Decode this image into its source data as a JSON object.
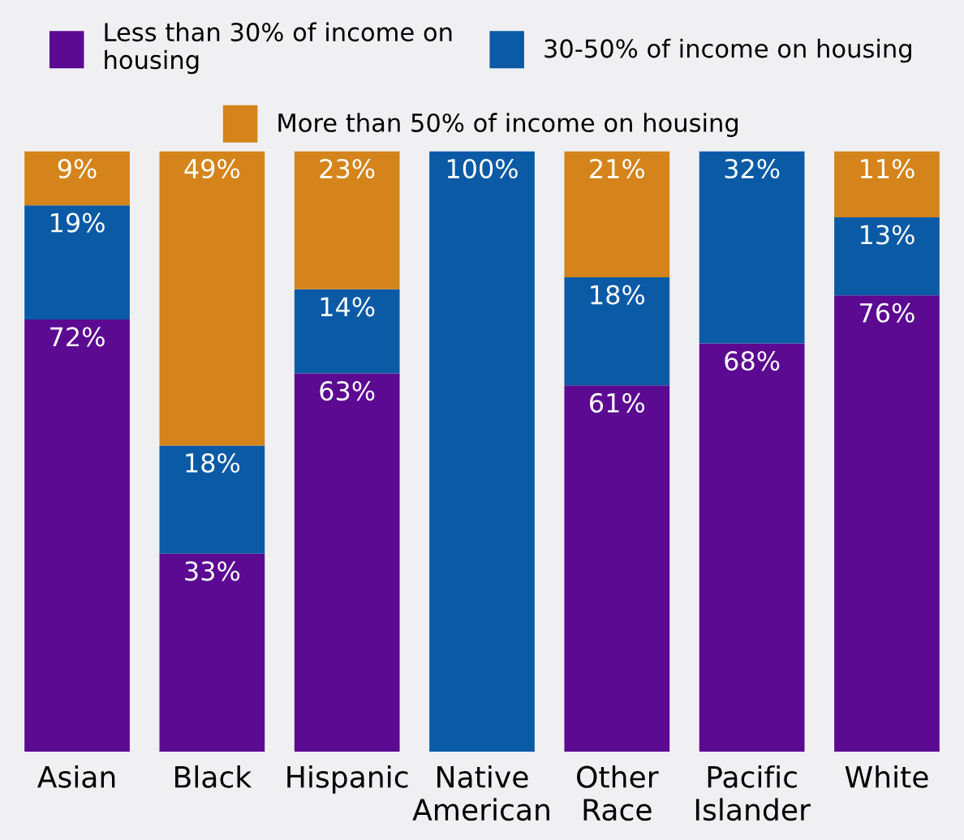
{
  "chart_data": {
    "type": "bar",
    "stacked": true,
    "categories": [
      "Asian",
      "Black",
      "Hispanic",
      "Native American",
      "Other Race",
      "Pacific Islander",
      "White"
    ],
    "series": [
      {
        "name": "Less than 30% of income on housing",
        "color": "#5c0a92",
        "values": [
          72,
          33,
          63,
          0,
          61,
          68,
          76
        ],
        "value_labels": [
          "72%",
          "33%",
          "63%",
          null,
          "61%",
          "68%",
          "76%"
        ]
      },
      {
        "name": "30-50% of income on housing",
        "color": "#0b5aa6",
        "values": [
          19,
          18,
          14,
          100,
          18,
          32,
          13
        ],
        "value_labels": [
          "19%",
          "18%",
          "14%",
          "100%",
          "18%",
          "32%",
          "13%"
        ]
      },
      {
        "name": "More than 50% of income on housing",
        "color": "#d4841a",
        "values": [
          9,
          49,
          23,
          0,
          21,
          0,
          11
        ],
        "value_labels": [
          "9%",
          "49%",
          "23%",
          null,
          "21%",
          null,
          "11%"
        ]
      }
    ],
    "legend": "top"
  }
}
